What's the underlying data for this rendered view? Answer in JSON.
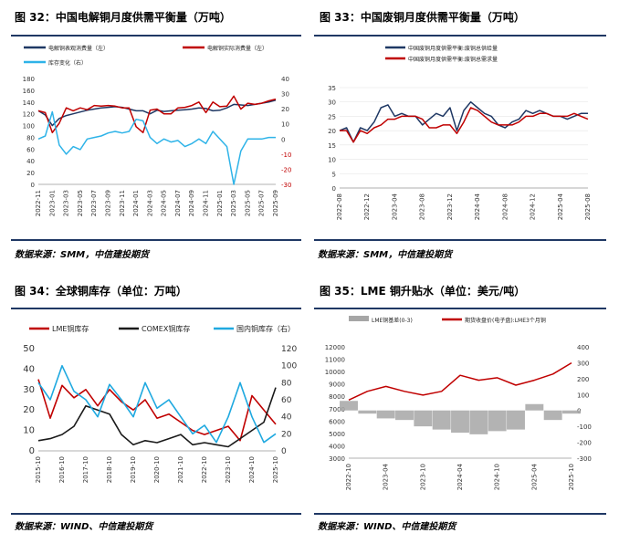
{
  "panels": [
    {
      "title": "图 32：中国电解铜月度供需平衡量（万吨）",
      "source": "数据来源：SMM，中信建投期货"
    },
    {
      "title": "图 33：中国废铜月度供需平衡量（万吨）",
      "source": "数据来源：SMM，中信建投期货"
    },
    {
      "title": "图 34：全球铜库存（单位：万吨）",
      "source": "数据来源：WIND、中信建投期货"
    },
    {
      "title": "图 35：LME 铜升贴水（单位：美元/吨）",
      "source": "数据来源：WIND、中信建投期货"
    }
  ],
  "chart_data": [
    {
      "type": "line",
      "legend": [
        "电解铜表观消费量（左）",
        "电解铜实际消费量（左）",
        "库存变化（右）"
      ],
      "colors": [
        "#1f3864",
        "#c00000",
        "#2eb3e8"
      ],
      "x": [
        "2022-11",
        "2022-12",
        "2023-01",
        "2023-02",
        "2023-03",
        "2023-04",
        "2023-05",
        "2023-06",
        "2023-07",
        "2023-08",
        "2023-09",
        "2023-10",
        "2023-11",
        "2023-12",
        "2024-01",
        "2024-02",
        "2024-03",
        "2024-04",
        "2024-05",
        "2024-06",
        "2024-07",
        "2024-08",
        "2024-09",
        "2024-10",
        "2024-11",
        "2024-12",
        "2025-01",
        "2025-02",
        "2025-03",
        "2025-04",
        "2025-05",
        "2025-06",
        "2025-07",
        "2025-08",
        "2025-09"
      ],
      "xticks": [
        "2022-11",
        "2023-01",
        "2023-03",
        "2023-05",
        "2023-07",
        "2023-09",
        "2023-11",
        "2024-01",
        "2024-03",
        "2024-05",
        "2024-07",
        "2024-09",
        "2024-11",
        "2025-01",
        "2025-03",
        "2025-05",
        "2025-07",
        "2025-09"
      ],
      "ylim": [
        0,
        180
      ],
      "yticks": [
        0,
        20,
        40,
        60,
        80,
        100,
        120,
        140,
        160,
        180
      ],
      "y2lim": [
        -30,
        40
      ],
      "y2ticks": [
        -30,
        -20,
        -10,
        0,
        10,
        20,
        30,
        40
      ],
      "series": [
        {
          "name": "电解铜表观消费量（左）",
          "axis": "left",
          "values": [
            125,
            118,
            100,
            112,
            117,
            120,
            123,
            126,
            128,
            130,
            131,
            132,
            131,
            128,
            125,
            125,
            120,
            126,
            124,
            125,
            126,
            127,
            128,
            130,
            129,
            125,
            126,
            130,
            136,
            135,
            134,
            136,
            138,
            140,
            143
          ]
        },
        {
          "name": "电解铜实际消费量（左）",
          "axis": "left",
          "values": [
            125,
            122,
            88,
            104,
            130,
            125,
            130,
            127,
            134,
            133,
            134,
            133,
            130,
            130,
            98,
            88,
            126,
            128,
            120,
            120,
            130,
            131,
            134,
            140,
            122,
            140,
            132,
            133,
            150,
            128,
            138,
            136,
            138,
            142,
            145
          ]
        },
        {
          "name": "库存变化（右）",
          "axis": "right",
          "values": [
            0,
            2,
            18,
            -4,
            -10,
            -5,
            -7,
            0,
            1,
            2,
            4,
            5,
            4,
            5,
            13,
            12,
            1,
            -3,
            0,
            -2,
            -1,
            -5,
            -3,
            0,
            -3,
            5,
            0,
            -5,
            -30,
            -8,
            0,
            0,
            0,
            1,
            1
          ]
        }
      ]
    },
    {
      "type": "line",
      "legend": [
        "中国废铜月度供需平衡:废铜总供给量",
        "中国废铜月度供需平衡:废铜总需求量"
      ],
      "colors": [
        "#1f3864",
        "#c00000"
      ],
      "x": [
        "2022-08",
        "2022-09",
        "2022-10",
        "2022-11",
        "2022-12",
        "2023-01",
        "2023-02",
        "2023-03",
        "2023-04",
        "2023-05",
        "2023-06",
        "2023-07",
        "2023-08",
        "2023-09",
        "2023-10",
        "2023-11",
        "2023-12",
        "2024-01",
        "2024-02",
        "2024-03",
        "2024-04",
        "2024-05",
        "2024-06",
        "2024-07",
        "2024-08",
        "2024-09",
        "2024-10",
        "2024-11",
        "2024-12",
        "2025-01",
        "2025-02",
        "2025-03",
        "2025-04",
        "2025-05",
        "2025-06",
        "2025-07",
        "2025-08"
      ],
      "xticks": [
        "2022-08",
        "2022-12",
        "2023-04",
        "2023-08",
        "2023-12",
        "2024-04",
        "2024-08",
        "2024-12",
        "2025-04",
        "2025-08"
      ],
      "ylim": [
        0,
        35
      ],
      "yticks": [
        0,
        5,
        10,
        15,
        20,
        25,
        30,
        35
      ],
      "series": [
        {
          "name": "中国废铜月度供需平衡:废铜总供给量",
          "values": [
            20,
            21,
            16,
            21,
            20,
            23,
            28,
            29,
            25,
            26,
            25,
            25,
            22,
            24,
            26,
            25,
            28,
            20,
            27,
            30,
            28,
            26,
            25,
            22,
            21,
            23,
            24,
            27,
            26,
            27,
            26,
            25,
            25,
            24,
            25,
            26,
            26
          ]
        },
        {
          "name": "中国废铜月度供需平衡:废铜总需求量",
          "values": [
            20,
            20,
            16,
            20,
            19,
            21,
            22,
            24,
            24,
            25,
            25,
            25,
            24,
            21,
            21,
            22,
            22,
            19,
            23,
            28,
            27,
            25,
            23,
            22,
            22,
            22,
            23,
            25,
            25,
            26,
            26,
            25,
            25,
            25,
            26,
            25,
            24
          ]
        }
      ]
    },
    {
      "type": "line",
      "legend": [
        "LME铜库存",
        "COMEX铜库存",
        "国内铜库存（右）"
      ],
      "colors": [
        "#c00000",
        "#1a1a1a",
        "#1fa9e0"
      ],
      "x": [
        "2015-10",
        "2016-04",
        "2016-10",
        "2017-04",
        "2017-10",
        "2018-04",
        "2018-10",
        "2019-04",
        "2019-10",
        "2020-04",
        "2020-10",
        "2021-04",
        "2021-10",
        "2022-04",
        "2022-10",
        "2023-04",
        "2023-10",
        "2024-04",
        "2024-10",
        "2025-04",
        "2025-10"
      ],
      "xticks": [
        "2015-10",
        "2016-10",
        "2017-10",
        "2018-10",
        "2019-10",
        "2020-10",
        "2021-10",
        "2022-10",
        "2023-10",
        "2024-10",
        "2025-10"
      ],
      "ylim": [
        0,
        50
      ],
      "yticks": [
        0,
        10,
        20,
        30,
        40,
        50
      ],
      "y2lim": [
        0,
        120
      ],
      "y2ticks": [
        0,
        20,
        40,
        60,
        80,
        100,
        120
      ],
      "series": [
        {
          "name": "LME铜库存",
          "axis": "left",
          "values": [
            35,
            16,
            32,
            26,
            30,
            22,
            30,
            24,
            20,
            25,
            16,
            18,
            14,
            10,
            8,
            10,
            12,
            5,
            27,
            20,
            13
          ]
        },
        {
          "name": "COMEX铜库存",
          "axis": "left",
          "values": [
            5,
            6,
            8,
            12,
            22,
            20,
            18,
            8,
            3,
            5,
            4,
            6,
            8,
            3,
            4,
            3,
            2,
            6,
            10,
            14,
            31
          ]
        },
        {
          "name": "国内铜库存（右）",
          "axis": "right",
          "values": [
            80,
            60,
            100,
            70,
            60,
            40,
            78,
            60,
            40,
            80,
            50,
            60,
            40,
            20,
            30,
            10,
            40,
            80,
            40,
            10,
            20
          ]
        }
      ]
    },
    {
      "type": "area",
      "legend": [
        "LME铜基差(0-3)",
        "期货收盘价(电子盘):LME3个月铜"
      ],
      "colors": [
        "#a6a6a6",
        "#c00000"
      ],
      "x": [
        "2022-10",
        "2023-01",
        "2023-04",
        "2023-07",
        "2023-10",
        "2024-01",
        "2024-04",
        "2024-07",
        "2024-10",
        "2025-01",
        "2025-04",
        "2025-07",
        "2025-10"
      ],
      "xticks": [
        "2022-10",
        "2023-04",
        "2023-10",
        "2024-04",
        "2024-10",
        "2025-04",
        "2025-10"
      ],
      "ylim": [
        3000,
        12000
      ],
      "yticks": [
        3000,
        4000,
        5000,
        6000,
        7000,
        8000,
        9000,
        10000,
        11000,
        12000
      ],
      "y2lim": [
        -300,
        400
      ],
      "y2ticks": [
        -300,
        -200,
        -100,
        0,
        100,
        200,
        300,
        400
      ],
      "series": [
        {
          "name": "期货收盘价(电子盘):LME3个月铜",
          "axis": "left",
          "values": [
            7700,
            8400,
            8800,
            8400,
            8100,
            8400,
            9700,
            9300,
            9500,
            8900,
            9300,
            9800,
            10700
          ]
        },
        {
          "name": "LME铜基差(0-3)",
          "axis": "right",
          "values": [
            60,
            -20,
            -50,
            -60,
            -100,
            -120,
            -140,
            -150,
            -130,
            -120,
            40,
            -60,
            -20
          ]
        }
      ]
    }
  ]
}
